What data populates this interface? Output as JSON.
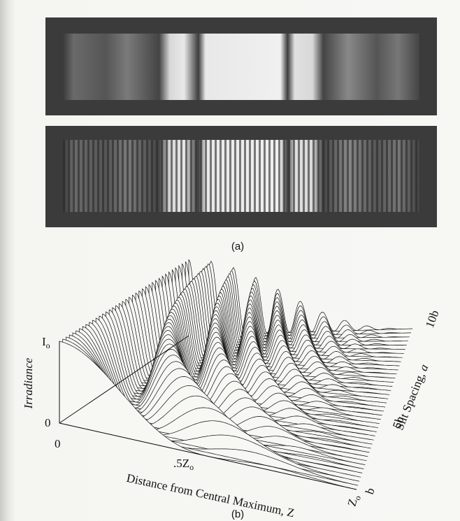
{
  "figure_a": {
    "caption": "(a)"
  },
  "figure_b": {
    "caption": "(b)",
    "y_axis_label": "Irradiance",
    "y_max_label": {
      "main": "I",
      "sub": "o"
    },
    "y_zero_label": "0",
    "x_zero_label": "0",
    "x_mid_label": {
      "main": ".5Z",
      "sub": "o"
    },
    "x_end_label": {
      "main": "Z",
      "sub": "o"
    },
    "x_axis_label": "Distance from Central Maximum, Z",
    "depth_axis_label": {
      "text": "Slit Spacing, ",
      "var": "a"
    },
    "depth_ticks": [
      "b",
      "5b",
      "10b"
    ]
  }
}
